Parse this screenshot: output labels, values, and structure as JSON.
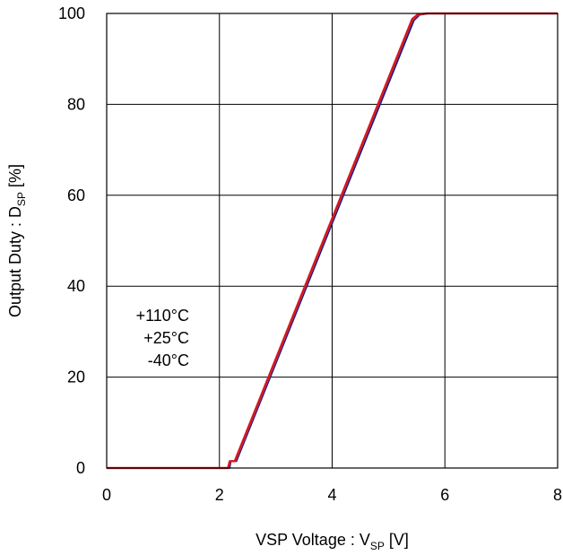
{
  "chart_data": {
    "type": "line",
    "xlabel": {
      "main": "VSP Voltage : V",
      "subscript": "SP",
      "unit": " [V]"
    },
    "ylabel": {
      "main": "Output Duty : D",
      "subscript": "SP",
      "unit": " [%]"
    },
    "xlim": [
      0,
      8
    ],
    "ylim": [
      0,
      100
    ],
    "xticks": [
      0,
      2,
      4,
      6,
      8
    ],
    "yticks": [
      0,
      20,
      40,
      60,
      80,
      100
    ],
    "grid": true,
    "legend_labels": [
      "+110°C",
      "+25°C",
      "-40°C"
    ],
    "series": [
      {
        "color": "#1a1a80",
        "x": [
          0,
          2.18,
          2.2,
          2.3,
          5.45,
          5.55,
          5.7,
          8
        ],
        "y": [
          0,
          0,
          1.5,
          1.5,
          98.5,
          99.7,
          100,
          100
        ]
      },
      {
        "color": "#e0303a",
        "x": [
          0,
          2.15,
          2.18,
          2.28,
          5.42,
          5.52,
          5.68,
          8
        ],
        "y": [
          0,
          0,
          1.5,
          1.5,
          98.5,
          99.7,
          100,
          100
        ]
      },
      {
        "color": "#d4181e",
        "x": [
          0,
          2.16,
          2.19,
          2.27,
          5.42,
          5.52,
          5.68,
          8
        ],
        "y": [
          0,
          0,
          1.5,
          1.5,
          98.8,
          99.8,
          100,
          100
        ]
      }
    ]
  }
}
